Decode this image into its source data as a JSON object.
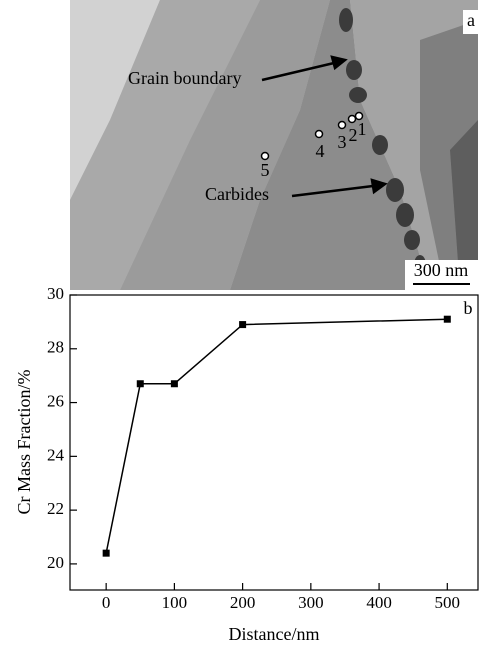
{
  "micrograph": {
    "panel_label": "a",
    "annotations": [
      "Grain boundary",
      "Carbides"
    ],
    "points": [
      "1",
      "2",
      "3",
      "4",
      "5"
    ],
    "scale_bar": "300 nm"
  },
  "chart_data": {
    "type": "line",
    "annotations": [
      "b"
    ],
    "x_label": "Distance/nm",
    "y_label": "Cr Mass Fraction/%",
    "x": [
      0,
      50,
      100,
      200,
      500
    ],
    "series": [
      {
        "color": "#000000",
        "values": [
          20.4,
          26.7,
          26.7,
          28.9,
          29.1
        ]
      }
    ],
    "xlim": [
      -53,
      545
    ],
    "ylim": [
      19.03,
      30
    ],
    "xticks": [
      0,
      100,
      200,
      300,
      400,
      500
    ],
    "yticks": [
      20,
      22,
      24,
      26,
      28,
      30
    ]
  }
}
